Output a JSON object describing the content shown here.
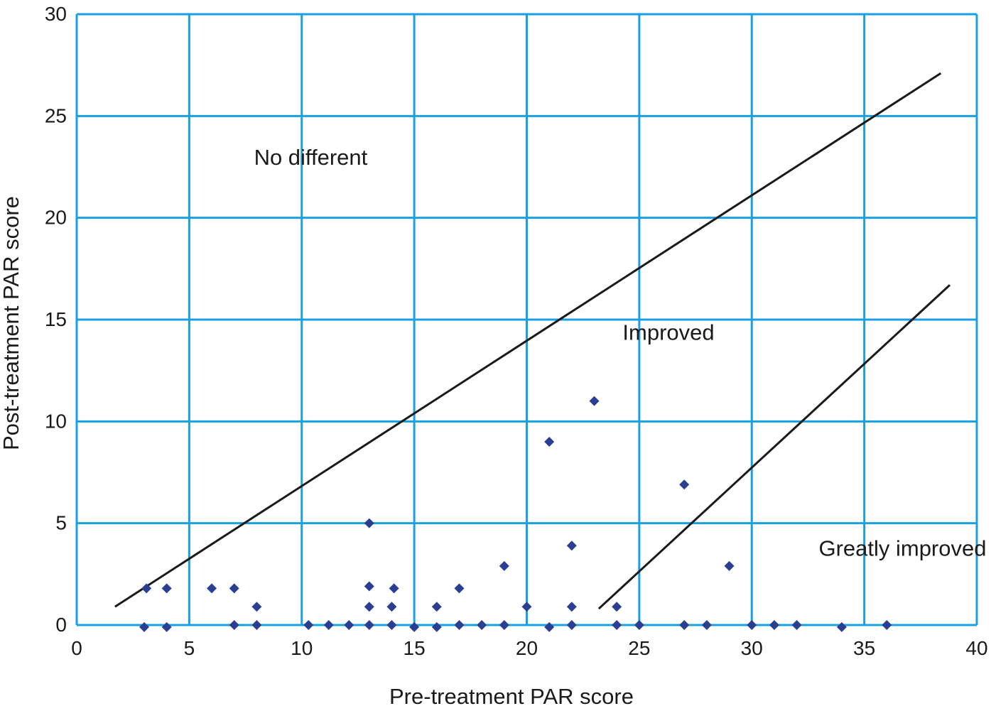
{
  "chart_data": {
    "type": "scatter",
    "title": "",
    "xlabel": "Pre-treatment PAR score",
    "ylabel": "Post-treatment PAR score",
    "xlim": [
      0,
      40
    ],
    "ylim": [
      0,
      30
    ],
    "xticks": [
      0,
      5,
      10,
      15,
      20,
      25,
      30,
      35,
      40
    ],
    "yticks": [
      0,
      5,
      10,
      15,
      20,
      25,
      30
    ],
    "grid": true,
    "colors": {
      "grid": "#1a9fe0",
      "marker": "#2b3f92",
      "line": "#1a1a1a"
    },
    "points": [
      [
        3,
        -0.1
      ],
      [
        3.1,
        1.8
      ],
      [
        4,
        -0.1
      ],
      [
        4,
        1.8
      ],
      [
        6,
        1.8
      ],
      [
        7,
        1.8
      ],
      [
        7,
        0
      ],
      [
        8,
        0.9
      ],
      [
        8,
        0
      ],
      [
        10.3,
        0
      ],
      [
        11.2,
        0
      ],
      [
        12.1,
        0
      ],
      [
        13,
        0
      ],
      [
        13,
        0.9
      ],
      [
        13,
        1.9
      ],
      [
        13,
        5
      ],
      [
        14,
        0
      ],
      [
        14,
        0.9
      ],
      [
        14.1,
        1.8
      ],
      [
        15,
        -0.1
      ],
      [
        16,
        -0.1
      ],
      [
        16,
        0.9
      ],
      [
        17,
        0
      ],
      [
        17,
        1.8
      ],
      [
        18,
        0
      ],
      [
        19,
        0
      ],
      [
        19,
        2.9
      ],
      [
        20,
        0.9
      ],
      [
        21,
        -0.1
      ],
      [
        21,
        9
      ],
      [
        22,
        0
      ],
      [
        22,
        0.9
      ],
      [
        22,
        3.9
      ],
      [
        23,
        11
      ],
      [
        24,
        0
      ],
      [
        24,
        0.9
      ],
      [
        25,
        0
      ],
      [
        27,
        0
      ],
      [
        27,
        6.9
      ],
      [
        28,
        0
      ],
      [
        29,
        2.9
      ],
      [
        30,
        0
      ],
      [
        31,
        0
      ],
      [
        32,
        0
      ],
      [
        34,
        -0.1
      ],
      [
        36,
        0
      ]
    ],
    "lines": [
      {
        "from": [
          1.7,
          0.9
        ],
        "to": [
          38.4,
          27.1
        ]
      },
      {
        "from": [
          23.2,
          0.8
        ],
        "to": [
          38.8,
          16.7
        ]
      }
    ],
    "annotations": [
      {
        "text": "No different",
        "x": 10.4,
        "y": 22.6
      },
      {
        "text": "Improved",
        "x": 26.3,
        "y": 14
      },
      {
        "text": "Greatly improved",
        "x": 36.7,
        "y": 3.4
      }
    ]
  }
}
